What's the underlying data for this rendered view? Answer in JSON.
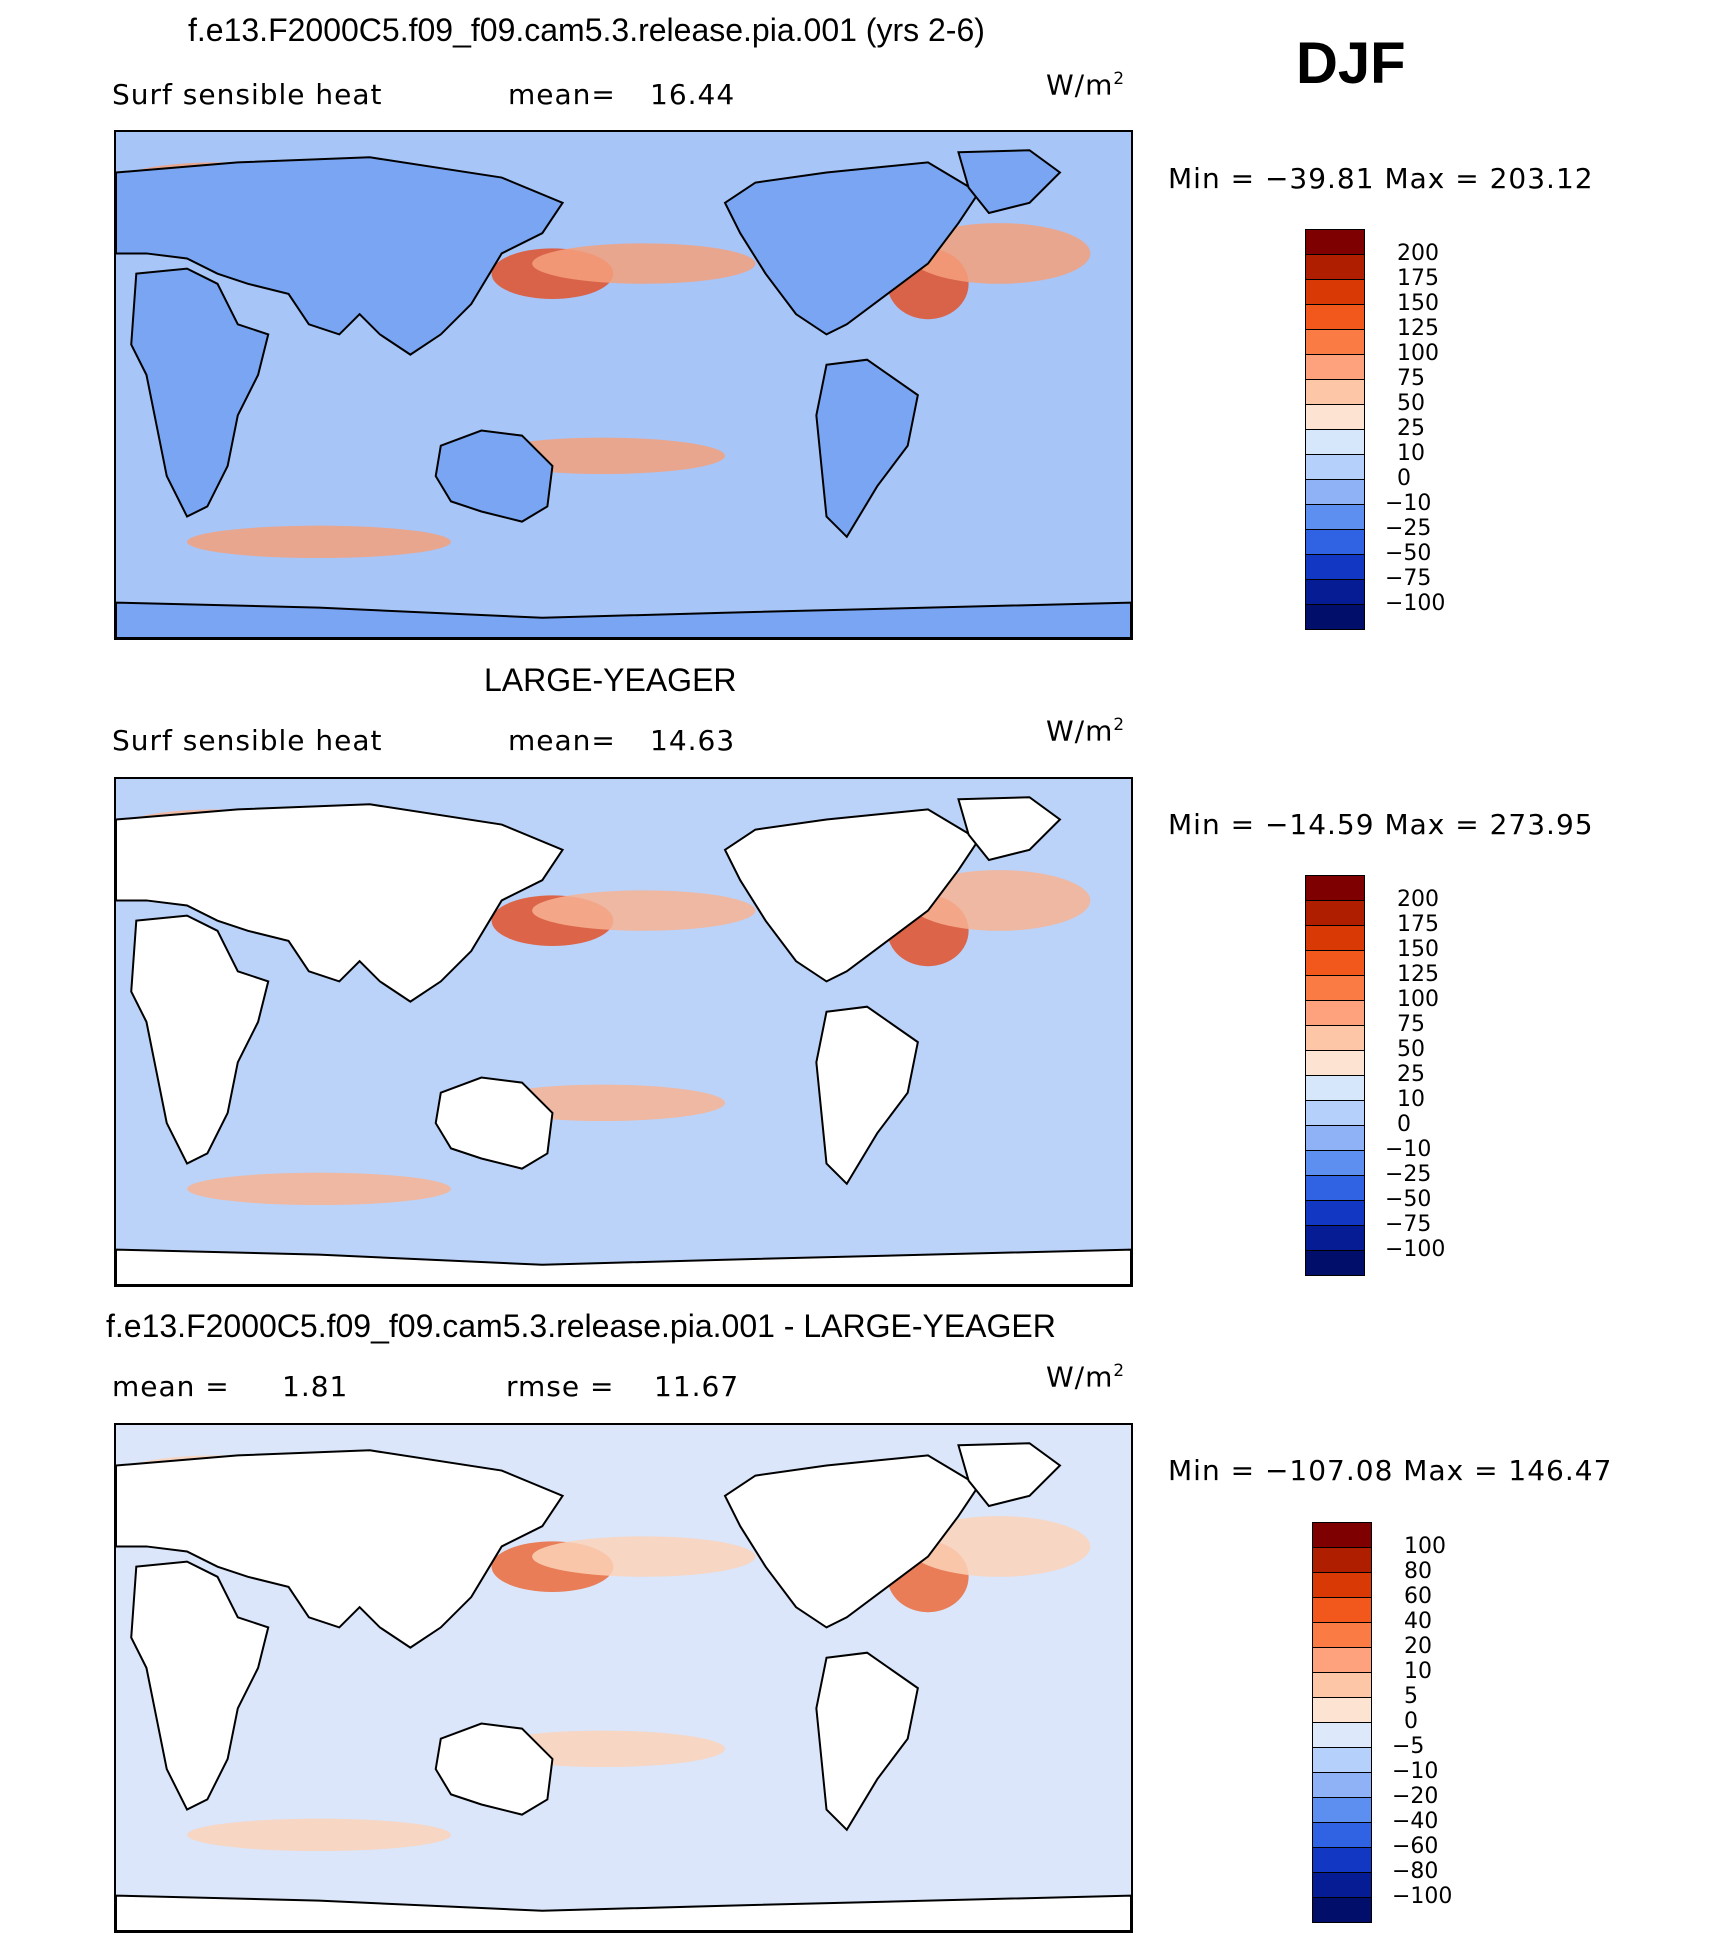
{
  "season": "DJF",
  "units_main": "W/m",
  "units_sup": "2",
  "panels": [
    {
      "title": "f.e13.F2000C5.f09_f09.cam5.3.release.pia.001 (yrs 2-6)",
      "left_label": "Surf  sensible  heat",
      "stat_label": "mean=",
      "stat_value": "16.44",
      "minmax": "Min  =  −39.81  Max  =  203.12",
      "colorbar": {
        "labels": [
          "200",
          "175",
          "150",
          "125",
          "100",
          "75",
          "50",
          "25",
          "10",
          "0",
          "−10",
          "−25",
          "−50",
          "−75",
          "−100"
        ],
        "colors": [
          "#7f0000",
          "#b01e00",
          "#d93a05",
          "#f2571b",
          "#fb7b45",
          "#fda27c",
          "#fdc6a6",
          "#fde4d2",
          "#d6e7fb",
          "#b5d0fb",
          "#8fb2f6",
          "#5d8ff0",
          "#2f63e3",
          "#1237c2",
          "#061c94",
          "#020f6a"
        ]
      },
      "fields": {
        "ocean": "#a8c5f7",
        "land": "#7aa5f2",
        "warm": "#f4a07c",
        "hot": "#e2512a"
      }
    },
    {
      "title": "LARGE-YEAGER",
      "left_label": "Surf  sensible  heat",
      "stat_label": "mean=",
      "stat_value": "14.63",
      "minmax": "Min  =  −14.59  Max  =  273.95",
      "colorbar": {
        "labels": [
          "200",
          "175",
          "150",
          "125",
          "100",
          "75",
          "50",
          "25",
          "10",
          "0",
          "−10",
          "−25",
          "−50",
          "−75",
          "−100"
        ],
        "colors": [
          "#7f0000",
          "#b01e00",
          "#d93a05",
          "#f2571b",
          "#fb7b45",
          "#fda27c",
          "#fdc6a6",
          "#fde4d2",
          "#d6e7fb",
          "#b5d0fb",
          "#8fb2f6",
          "#5d8ff0",
          "#2f63e3",
          "#1237c2",
          "#061c94",
          "#020f6a"
        ]
      },
      "fields": {
        "ocean": "#bcd3f9",
        "land": "#ffffff",
        "warm": "#f7b393",
        "hot": "#e2512a"
      }
    },
    {
      "title": "f.e13.F2000C5.f09_f09.cam5.3.release.pia.001 - LARGE-YEAGER",
      "left_label": "mean  =",
      "left_value": "1.81",
      "stat_label": "rmse  =",
      "stat_value": "11.67",
      "minmax": "Min  =  −107.08  Max  =  146.47",
      "colorbar": {
        "labels": [
          "100",
          "80",
          "60",
          "40",
          "20",
          "10",
          "5",
          "0",
          "−5",
          "−10",
          "−20",
          "−40",
          "−60",
          "−80",
          "−100"
        ],
        "colors": [
          "#7f0000",
          "#b01e00",
          "#d93a05",
          "#f2571b",
          "#fb7b45",
          "#fda27c",
          "#fdc6a6",
          "#fde4d2",
          "#dde9fb",
          "#b5d0fb",
          "#8fb2f6",
          "#5d8ff0",
          "#2f63e3",
          "#1237c2",
          "#061c94",
          "#020f6a"
        ]
      },
      "fields": {
        "ocean": "#dbe6fa",
        "land": "#ffffff",
        "warm": "#fbd2b8",
        "hot": "#ea6a3a"
      }
    }
  ]
}
